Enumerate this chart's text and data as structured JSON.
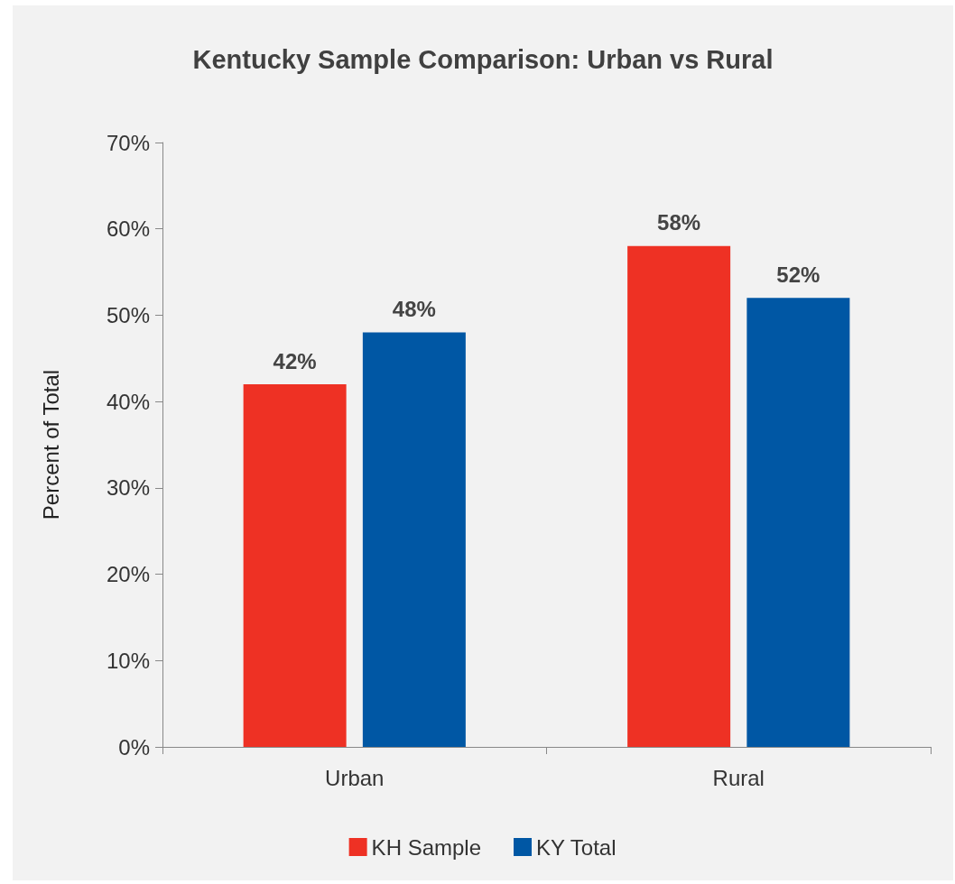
{
  "chart_data": {
    "type": "bar",
    "title": "Kentucky Sample Comparison: Urban vs Rural",
    "ylabel": "Percent of Total",
    "categories": [
      "Urban",
      "Rural"
    ],
    "series": [
      {
        "name": "KH Sample",
        "color": "#ee3124",
        "values": [
          42,
          58
        ],
        "value_labels": [
          "42%",
          "58%"
        ]
      },
      {
        "name": "KY Total",
        "color": "#0057a4",
        "values": [
          48,
          52
        ],
        "value_labels": [
          "48%",
          "52%"
        ]
      }
    ],
    "ylim": [
      0,
      70
    ],
    "yticks": [
      {
        "value": 0,
        "label": "0%"
      },
      {
        "value": 10,
        "label": "10%"
      },
      {
        "value": 20,
        "label": "20%"
      },
      {
        "value": 30,
        "label": "30%"
      },
      {
        "value": 40,
        "label": "40%"
      },
      {
        "value": 50,
        "label": "50%"
      },
      {
        "value": 60,
        "label": "60%"
      },
      {
        "value": 70,
        "label": "70%"
      }
    ],
    "grid": false,
    "legend": "bottom"
  }
}
